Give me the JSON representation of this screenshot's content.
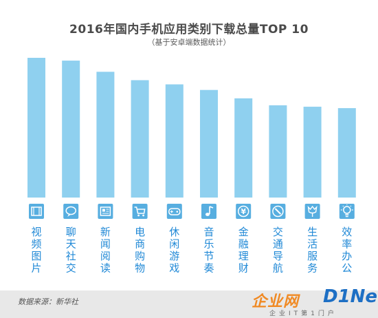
{
  "title": "2016年国内手机应用类别下载总量TOP 10",
  "subtitle": "（基于安卓端数据统计）",
  "footer": {
    "source": "数据来源：新华社",
    "watermark_cn": "企业网",
    "watermark_en": "D1Net",
    "watermark_slogan": "企业IT第1门户"
  },
  "chart_data": {
    "type": "bar",
    "title": "2016年国内手机应用类别下载总量TOP 10",
    "subtitle": "（基于安卓端数据统计）",
    "categories": [
      "视频图片",
      "聊天社交",
      "新闻阅读",
      "电商购物",
      "休闲游戏",
      "音乐节奏",
      "金融理财",
      "交通导航",
      "生活服务",
      "效率办公"
    ],
    "icons": [
      "film-icon",
      "chat-bubble-icon",
      "newspaper-icon",
      "shopping-cart-icon",
      "gamepad-icon",
      "music-note-icon",
      "yen-coin-icon",
      "compass-icon",
      "flower-icon",
      "lightbulb-icon"
    ],
    "values": [
      100,
      98,
      90,
      84,
      81,
      77,
      71,
      66,
      65,
      64
    ],
    "value_unit": "relative bar height (no scale shown)",
    "ylim": [
      0,
      100
    ],
    "axis_labels_shown": false,
    "grid": false,
    "bar_color": "#8fd0ef",
    "icon_color": "#57aee0",
    "label_color": "#1f88d6"
  }
}
